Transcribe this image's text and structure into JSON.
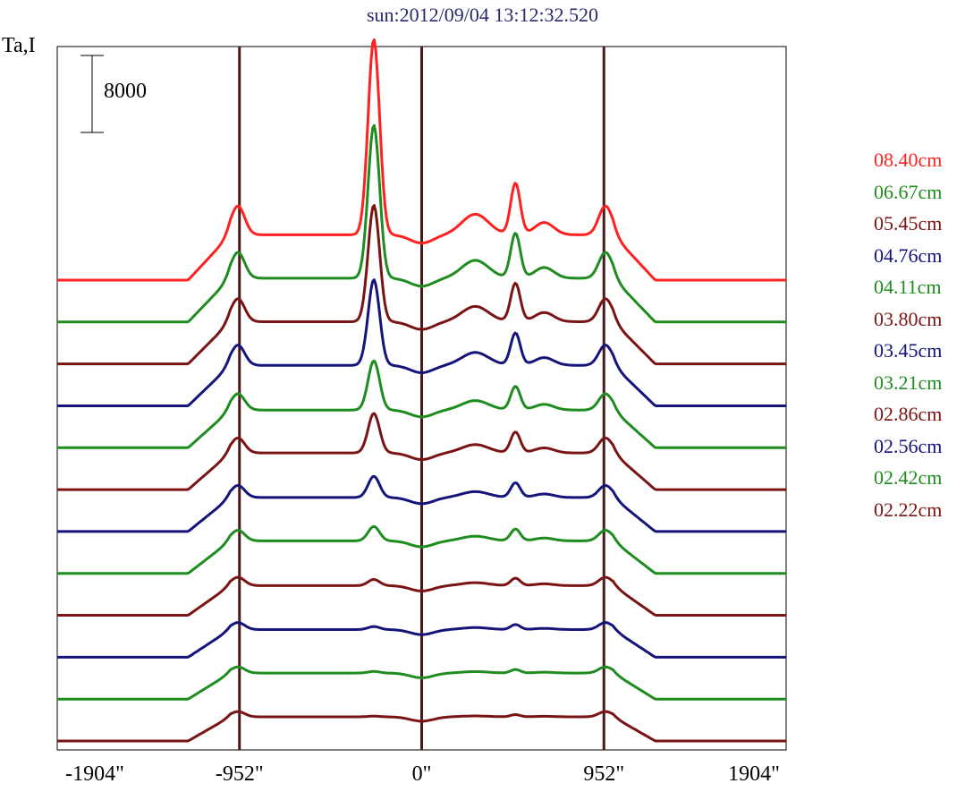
{
  "chart_data": {
    "type": "line",
    "title": "sun:2012/09/04 13:12:32.520",
    "ylabel": "Ta,I",
    "scale_bar_label": "8000",
    "scale_bar_value": 8000,
    "x_ticks": [
      "-1904\"",
      "-952\"",
      "0\"",
      "952\"",
      "1904\""
    ],
    "x_tick_values": [
      -1904,
      -952,
      0,
      952,
      1904
    ],
    "xlim": [
      -1904,
      1904
    ],
    "vertical_lines_at": [
      -952,
      0,
      952
    ],
    "layout": "stacked profiles, one per wavelength, vertically offset",
    "series": [
      {
        "name": "08.40cm",
        "color": "#ff2020",
        "peak": 1.0
      },
      {
        "name": "06.67cm",
        "color": "#1e8c1e",
        "peak": 0.9
      },
      {
        "name": "05.45cm",
        "color": "#7a1414",
        "peak": 0.8
      },
      {
        "name": "04.76cm",
        "color": "#14147a",
        "peak": 0.7
      },
      {
        "name": "04.11cm",
        "color": "#1e8c1e",
        "peak": 0.55
      },
      {
        "name": "03.80cm",
        "color": "#7a1414",
        "peak": 0.5
      },
      {
        "name": "03.45cm",
        "color": "#14147a",
        "peak": 0.38
      },
      {
        "name": "03.21cm",
        "color": "#1e8c1e",
        "peak": 0.32
      },
      {
        "name": "02.86cm",
        "color": "#7a1414",
        "peak": 0.22
      },
      {
        "name": "02.56cm",
        "color": "#14147a",
        "peak": 0.16
      },
      {
        "name": "02.42cm",
        "color": "#1e8c1e",
        "peak": 0.12
      },
      {
        "name": "02.22cm",
        "color": "#7a1414",
        "peak": 0.08
      }
    ],
    "grid": false,
    "legend_position": "right"
  }
}
